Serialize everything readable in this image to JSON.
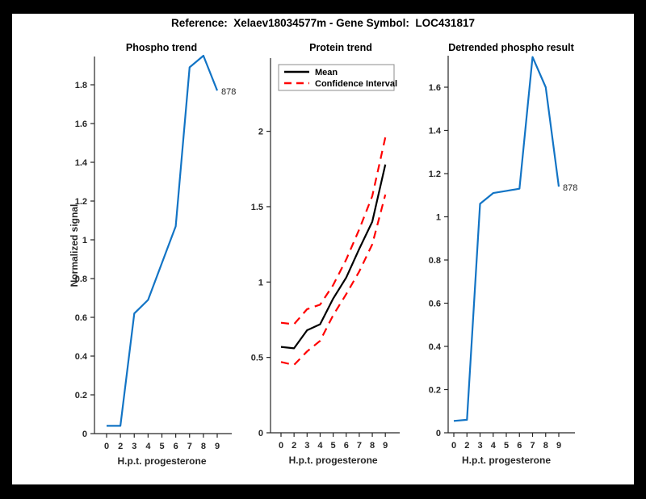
{
  "figure": {
    "title": "Reference:  Xelaev18034577m - Gene Symbol:  LOC431817",
    "background_color": "#ffffff",
    "frame_color": "#000000",
    "axis_color": "#262626"
  },
  "colors": {
    "blue_line": "#1274c5",
    "mean_line": "#000000",
    "ci_line": "#ff0000",
    "legend_border": "#8c8c8c"
  },
  "chart_data": [
    {
      "type": "line",
      "name": "phospho-trend",
      "title": "Phospho trend",
      "xlabel": "H.p.t. progesterone",
      "ylabel": "Normalized signal",
      "categories": [
        "0",
        "2",
        "3",
        "4",
        "5",
        "6",
        "7",
        "8",
        "9"
      ],
      "yticks": [
        0,
        0.2,
        0.4,
        0.6,
        0.8,
        1,
        1.2,
        1.4,
        1.6,
        1.8
      ],
      "ylim": [
        0,
        1.945
      ],
      "grid": false,
      "series": [
        {
          "name": "phospho-signal",
          "color": "#1274c5",
          "style": "solid",
          "values": [
            0.04,
            0.04,
            0.62,
            0.69,
            0.88,
            1.07,
            1.89,
            1.95,
            1.77
          ]
        }
      ],
      "annotation": {
        "text": "878"
      }
    },
    {
      "type": "line",
      "name": "protein-trend",
      "title": "Protein trend",
      "xlabel": "H.p.t. progesterone",
      "ylabel": "",
      "categories": [
        "0",
        "2",
        "3",
        "4",
        "5",
        "6",
        "7",
        "8",
        "9"
      ],
      "yticks": [
        0,
        0.5,
        1,
        1.5,
        2
      ],
      "ylim": [
        0,
        2.485
      ],
      "grid": false,
      "series": [
        {
          "name": "ci-upper",
          "color": "#ff0000",
          "style": "dashed",
          "values": [
            0.73,
            0.72,
            0.82,
            0.85,
            0.98,
            1.15,
            1.35,
            1.57,
            1.96
          ]
        },
        {
          "name": "ci-lower",
          "color": "#ff0000",
          "style": "dashed",
          "values": [
            0.47,
            0.45,
            0.54,
            0.61,
            0.78,
            0.92,
            1.07,
            1.25,
            1.58
          ]
        },
        {
          "name": "mean",
          "color": "#000000",
          "style": "solid",
          "values": [
            0.57,
            0.56,
            0.68,
            0.72,
            0.89,
            1.03,
            1.22,
            1.4,
            1.78
          ]
        }
      ],
      "legend": {
        "position": "top-left",
        "entries": [
          {
            "label": "Mean",
            "color": "#000000",
            "dashed": false
          },
          {
            "label": "Confidence Interval",
            "color": "#ff0000",
            "dashed": true
          }
        ]
      }
    },
    {
      "type": "line",
      "name": "detrended-phospho-result",
      "title": "Detrended phospho result",
      "xlabel": "H.p.t. progesterone",
      "ylabel": "",
      "categories": [
        "0",
        "2",
        "3",
        "4",
        "5",
        "6",
        "7",
        "8",
        "9"
      ],
      "yticks": [
        0,
        0.2,
        0.4,
        0.6,
        0.8,
        1,
        1.2,
        1.4,
        1.6
      ],
      "ylim": [
        0,
        1.745
      ],
      "grid": false,
      "series": [
        {
          "name": "detrended-signal",
          "color": "#1274c5",
          "style": "solid",
          "values": [
            0.055,
            0.06,
            1.06,
            1.11,
            1.12,
            1.13,
            1.74,
            1.6,
            1.14
          ]
        }
      ],
      "annotation": {
        "text": "878"
      }
    }
  ]
}
